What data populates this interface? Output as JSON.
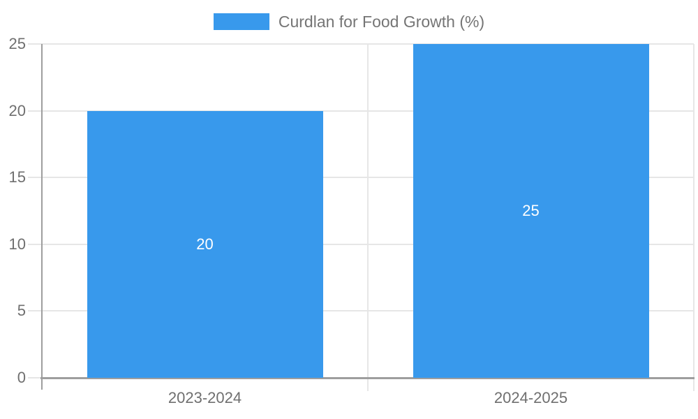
{
  "legend": {
    "label": "Curdlan for Food Growth (%)"
  },
  "chart_data": {
    "type": "bar",
    "title": "",
    "xlabel": "",
    "ylabel": "",
    "categories": [
      "2023-2024",
      "2024-2025"
    ],
    "series": [
      {
        "name": "Curdlan for Food Growth (%)",
        "values": [
          20,
          25
        ]
      }
    ],
    "bar_value_labels": [
      "20",
      "25"
    ],
    "ylim": [
      0,
      25
    ],
    "yticks": [
      0,
      5,
      10,
      15,
      20,
      25
    ],
    "ytick_labels": [
      "0",
      "5",
      "10",
      "15",
      "20",
      "25"
    ],
    "grid": true,
    "legend_position": "top",
    "colors": {
      "bar": "#3899ec",
      "grid": "#e6e6e6",
      "axis": "#9e9e9e",
      "tick_label": "#6f6f6f",
      "bar_label": "#ffffff",
      "legend_text": "#757575"
    }
  }
}
